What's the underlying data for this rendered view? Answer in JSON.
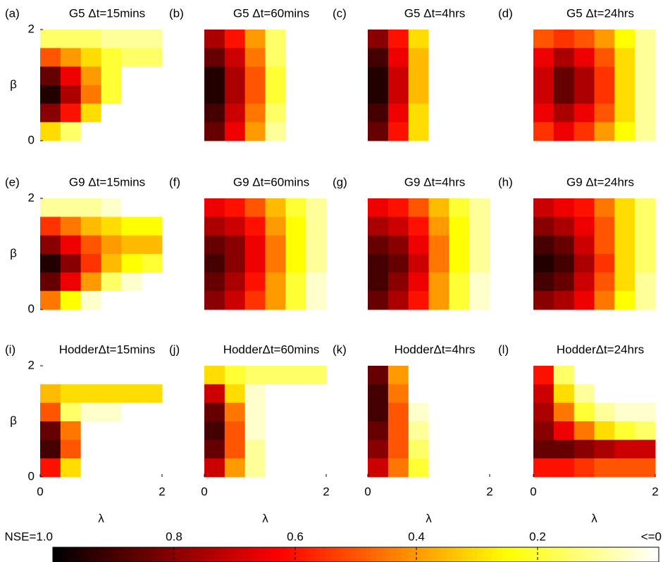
{
  "chart_data": [
    {
      "type": "heatmap",
      "label": "(a)",
      "title": "G5 Δt=15mins",
      "ylabel": "β",
      "xlim": [
        0,
        2
      ],
      "ylim": [
        0,
        2
      ],
      "yticks": [
        0,
        2
      ],
      "values": [
        [
          0.15,
          0.15,
          0.15,
          0.1,
          0.1,
          0.1
        ],
        [
          0.5,
          0.4,
          0.3,
          0.2,
          0.15,
          0.15
        ],
        [
          0.85,
          0.65,
          0.4,
          0.2,
          0,
          0
        ],
        [
          0.95,
          0.75,
          0.45,
          0.2,
          0,
          0
        ],
        [
          0.8,
          0.6,
          0.3,
          0,
          0,
          0
        ],
        [
          0.3,
          0.15,
          0,
          0,
          0,
          0
        ]
      ]
    },
    {
      "type": "heatmap",
      "label": "(b)",
      "title": "G5 Δt=60mins",
      "xlim": [
        0,
        2
      ],
      "ylim": [
        0,
        2
      ],
      "values": [
        [
          0.75,
          0.6,
          0.4,
          0.15,
          0,
          0
        ],
        [
          0.85,
          0.7,
          0.45,
          0.15,
          0,
          0
        ],
        [
          0.95,
          0.75,
          0.5,
          0.2,
          0,
          0
        ],
        [
          0.95,
          0.75,
          0.5,
          0.2,
          0,
          0
        ],
        [
          0.9,
          0.7,
          0.45,
          0.15,
          0,
          0
        ],
        [
          0.85,
          0.65,
          0.4,
          0.1,
          0,
          0
        ]
      ]
    },
    {
      "type": "heatmap",
      "label": "(c)",
      "title": "G5 Δt=4hrs",
      "xlim": [
        0,
        2
      ],
      "ylim": [
        0,
        2
      ],
      "values": [
        [
          0.8,
          0.6,
          0.3,
          0,
          0,
          0
        ],
        [
          0.9,
          0.65,
          0.35,
          0,
          0,
          0
        ],
        [
          0.95,
          0.7,
          0.35,
          0,
          0,
          0
        ],
        [
          0.95,
          0.7,
          0.35,
          0,
          0,
          0
        ],
        [
          0.9,
          0.65,
          0.3,
          0,
          0,
          0
        ],
        [
          0.85,
          0.6,
          0.3,
          0,
          0,
          0
        ]
      ]
    },
    {
      "type": "heatmap",
      "label": "(d)",
      "title": "G5 Δt=24hrs",
      "xlim": [
        0,
        2
      ],
      "ylim": [
        0,
        2
      ],
      "values": [
        [
          0.5,
          0.55,
          0.5,
          0.4,
          0.25,
          0.1
        ],
        [
          0.65,
          0.75,
          0.65,
          0.5,
          0.3,
          0.1
        ],
        [
          0.7,
          0.85,
          0.75,
          0.55,
          0.3,
          0.1
        ],
        [
          0.7,
          0.85,
          0.75,
          0.55,
          0.3,
          0.1
        ],
        [
          0.65,
          0.75,
          0.65,
          0.5,
          0.3,
          0.1
        ],
        [
          0.55,
          0.65,
          0.55,
          0.4,
          0.25,
          0.1
        ]
      ]
    },
    {
      "type": "heatmap",
      "label": "(e)",
      "title": "G9 Δt=15mins",
      "ylabel": "β",
      "xlim": [
        0,
        2
      ],
      "ylim": [
        0,
        2
      ],
      "yticks": [
        0,
        2
      ],
      "values": [
        [
          0.1,
          0.1,
          0.1,
          0.05,
          0,
          0
        ],
        [
          0.55,
          0.45,
          0.35,
          0.3,
          0.25,
          0.25
        ],
        [
          0.8,
          0.65,
          0.5,
          0.4,
          0.35,
          0.35
        ],
        [
          0.95,
          0.8,
          0.55,
          0.35,
          0.25,
          0.2
        ],
        [
          0.85,
          0.65,
          0.4,
          0.15,
          0.05,
          0
        ],
        [
          0.45,
          0.25,
          0.05,
          0,
          0,
          0
        ]
      ]
    },
    {
      "type": "heatmap",
      "label": "(f)",
      "title": "G9 Δt=60mins",
      "xlim": [
        0,
        2
      ],
      "ylim": [
        0,
        2
      ],
      "values": [
        [
          0.65,
          0.6,
          0.5,
          0.35,
          0.2,
          0.1
        ],
        [
          0.75,
          0.7,
          0.6,
          0.4,
          0.25,
          0.1
        ],
        [
          0.85,
          0.8,
          0.65,
          0.45,
          0.25,
          0.1
        ],
        [
          0.9,
          0.8,
          0.65,
          0.45,
          0.25,
          0.1
        ],
        [
          0.85,
          0.75,
          0.6,
          0.4,
          0.2,
          0.05
        ],
        [
          0.8,
          0.7,
          0.55,
          0.4,
          0.2,
          0.05
        ]
      ]
    },
    {
      "type": "heatmap",
      "label": "(g)",
      "title": "G9 Δt=4hrs",
      "xlim": [
        0,
        2
      ],
      "ylim": [
        0,
        2
      ],
      "values": [
        [
          0.65,
          0.6,
          0.5,
          0.35,
          0.2,
          0.1
        ],
        [
          0.75,
          0.7,
          0.6,
          0.4,
          0.25,
          0.1
        ],
        [
          0.85,
          0.8,
          0.65,
          0.45,
          0.25,
          0.1
        ],
        [
          0.9,
          0.85,
          0.7,
          0.45,
          0.25,
          0.1
        ],
        [
          0.9,
          0.8,
          0.65,
          0.4,
          0.2,
          0.05
        ],
        [
          0.85,
          0.75,
          0.6,
          0.4,
          0.2,
          0.05
        ]
      ]
    },
    {
      "type": "heatmap",
      "label": "(h)",
      "title": "G9 Δt=24hrs",
      "xlim": [
        0,
        2
      ],
      "ylim": [
        0,
        2
      ],
      "values": [
        [
          0.7,
          0.65,
          0.6,
          0.45,
          0.3,
          0.15
        ],
        [
          0.8,
          0.75,
          0.65,
          0.5,
          0.3,
          0.15
        ],
        [
          0.9,
          0.85,
          0.7,
          0.5,
          0.3,
          0.15
        ],
        [
          0.95,
          0.9,
          0.75,
          0.55,
          0.3,
          0.15
        ],
        [
          0.9,
          0.85,
          0.7,
          0.5,
          0.3,
          0.1
        ],
        [
          0.8,
          0.75,
          0.65,
          0.45,
          0.25,
          0.1
        ]
      ]
    },
    {
      "type": "heatmap",
      "label": "(i)",
      "title": "HodderΔt=15mins",
      "xlabel": "λ",
      "ylabel": "β",
      "xlim": [
        0,
        2
      ],
      "ylim": [
        0,
        2
      ],
      "xticks": [
        0,
        2
      ],
      "yticks": [
        0,
        2
      ],
      "values": [
        [
          0,
          0,
          0,
          0,
          0,
          0
        ],
        [
          0.35,
          0.3,
          0.3,
          0.3,
          0.3,
          0.3
        ],
        [
          0.5,
          0.15,
          0.05,
          0.05,
          0,
          0
        ],
        [
          0.85,
          0.45,
          0,
          0,
          0,
          0
        ],
        [
          0.9,
          0.5,
          0,
          0,
          0,
          0
        ],
        [
          0.6,
          0.3,
          0,
          0,
          0,
          0
        ]
      ]
    },
    {
      "type": "heatmap",
      "label": "(j)",
      "title": "HodderΔt=60mins",
      "xlabel": "λ",
      "xlim": [
        0,
        2
      ],
      "ylim": [
        0,
        2
      ],
      "xticks": [
        0,
        2
      ],
      "values": [
        [
          0.3,
          0.2,
          0.15,
          0.15,
          0.15,
          0.15
        ],
        [
          0.7,
          0.3,
          0.05,
          0,
          0,
          0
        ],
        [
          0.85,
          0.45,
          0.05,
          0,
          0,
          0
        ],
        [
          0.9,
          0.5,
          0.05,
          0,
          0,
          0
        ],
        [
          0.85,
          0.5,
          0.1,
          0,
          0,
          0
        ],
        [
          0.7,
          0.4,
          0.1,
          0,
          0,
          0
        ]
      ]
    },
    {
      "type": "heatmap",
      "label": "(k)",
      "title": "HodderΔt=4hrs",
      "xlabel": "λ",
      "xlim": [
        0,
        2
      ],
      "ylim": [
        0,
        2
      ],
      "xticks": [
        0,
        2
      ],
      "values": [
        [
          0.85,
          0.4,
          0,
          0,
          0,
          0
        ],
        [
          0.9,
          0.45,
          0,
          0,
          0,
          0
        ],
        [
          0.9,
          0.5,
          0.05,
          0,
          0,
          0
        ],
        [
          0.85,
          0.5,
          0.1,
          0,
          0,
          0
        ],
        [
          0.8,
          0.5,
          0.15,
          0,
          0,
          0
        ],
        [
          0.7,
          0.45,
          0.2,
          0,
          0,
          0
        ]
      ]
    },
    {
      "type": "heatmap",
      "label": "(l)",
      "title": "HodderΔt=24hrs",
      "xlabel": "λ",
      "xlim": [
        0,
        2
      ],
      "ylim": [
        0,
        2
      ],
      "xticks": [
        0,
        2
      ],
      "values": [
        [
          0.6,
          0.15,
          0,
          0,
          0,
          0
        ],
        [
          0.7,
          0.3,
          0.1,
          0,
          0,
          0
        ],
        [
          0.75,
          0.45,
          0.2,
          0.1,
          0.05,
          0.05
        ],
        [
          0.8,
          0.65,
          0.45,
          0.3,
          0.2,
          0.15
        ],
        [
          0.85,
          0.85,
          0.8,
          0.75,
          0.7,
          0.7
        ],
        [
          0.6,
          0.6,
          0.55,
          0.5,
          0.5,
          0.5
        ]
      ]
    }
  ],
  "colorbar": {
    "colormap": "hot_r",
    "lim": [
      1,
      0
    ],
    "ticks": [
      {
        "value": 1,
        "label": "NSE=1.0"
      },
      0.8,
      0.6,
      0.4,
      0.2,
      {
        "value": 0,
        "label": "<=0"
      }
    ]
  }
}
